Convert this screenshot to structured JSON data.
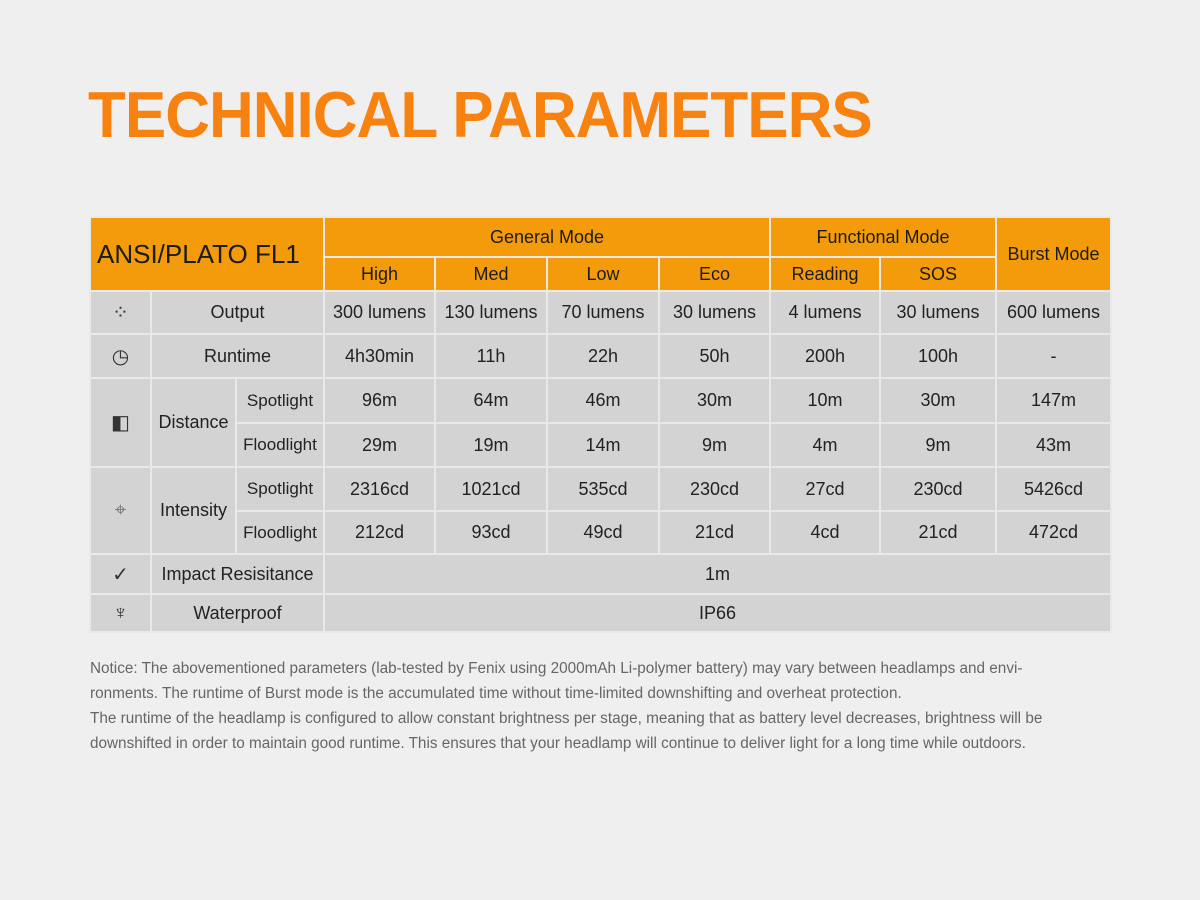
{
  "title": "TECHNICAL PARAMETERS",
  "table": {
    "corner": "ANSI/PLATO FL1",
    "groups": {
      "general": "General Mode",
      "functional": "Functional Mode",
      "burst": "Burst Mode"
    },
    "modes": [
      "High",
      "Med",
      "Low",
      "Eco",
      "Reading",
      "SOS"
    ],
    "rows": {
      "output": {
        "label": "Output",
        "icon": "light-burst-icon",
        "values": [
          "300 lumens",
          "130 lumens",
          "70 lumens",
          "30 lumens",
          "4 lumens",
          "30 lumens",
          "600 lumens"
        ]
      },
      "runtime": {
        "label": "Runtime",
        "icon": "clock-icon",
        "values": [
          "4h30min",
          "11h",
          "22h",
          "50h",
          "200h",
          "100h",
          "-"
        ]
      },
      "distance": {
        "label": "Distance",
        "icon": "beam-distance-icon",
        "spot_label": "Spotlight",
        "flood_label": "Floodlight",
        "spot": [
          "96m",
          "64m",
          "46m",
          "30m",
          "10m",
          "30m",
          "147m"
        ],
        "flood": [
          "29m",
          "19m",
          "14m",
          "9m",
          "4m",
          "9m",
          "43m"
        ]
      },
      "intensity": {
        "label": "Intensity",
        "icon": "crosshair-icon",
        "spot_label": "Spotlight",
        "flood_label": "Floodlight",
        "spot": [
          "2316cd",
          "1021cd",
          "535cd",
          "230cd",
          "27cd",
          "230cd",
          "5426cd"
        ],
        "flood": [
          "212cd",
          "93cd",
          "49cd",
          "21cd",
          "4cd",
          "21cd",
          "472cd"
        ]
      },
      "impact": {
        "label": "Impact Resisitance",
        "icon": "impact-icon",
        "value": "1m"
      },
      "waterproof": {
        "label": "Waterproof",
        "icon": "waterproof-icon",
        "value": "IP66"
      }
    }
  },
  "notice": [
    "Notice: The abovementioned parameters (lab-tested by Fenix using 2000mAh Li-polymer battery) may vary between headlamps and envi-",
    "ronments. The runtime of Burst mode is the accumulated time without time-limited downshifting and overheat protection.",
    "The runtime of the headlamp is configured to allow constant brightness per stage, meaning that as battery level decreases, brightness will be",
    "downshifted  in order to maintain good runtime. This ensures that your headlamp will continue to deliver light for a long time while outdoors."
  ],
  "colors": {
    "accent": "#f7820f",
    "header": "#f39b0b",
    "cell": "#d3d3d3"
  }
}
